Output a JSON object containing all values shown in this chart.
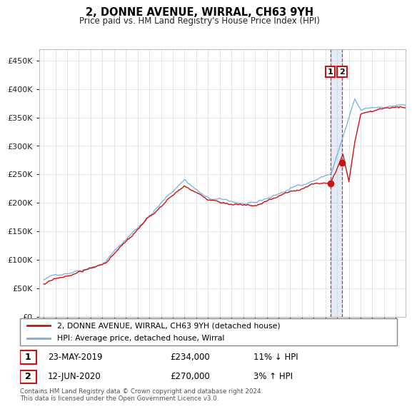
{
  "title": "2, DONNE AVENUE, WIRRAL, CH63 9YH",
  "subtitle": "Price paid vs. HM Land Registry's House Price Index (HPI)",
  "ylim": [
    0,
    470000
  ],
  "yticks": [
    0,
    50000,
    100000,
    150000,
    200000,
    250000,
    300000,
    350000,
    400000,
    450000
  ],
  "hpi_color": "#7aade0",
  "price_color": "#cc1111",
  "vline_color": "#cc1111",
  "transaction1": {
    "date_label": "23-MAY-2019",
    "price": 234000,
    "hpi_diff": "11% ↓ HPI",
    "year": 2019.384
  },
  "transaction2": {
    "date_label": "12-JUN-2020",
    "price": 270000,
    "hpi_diff": "3% ↑ HPI",
    "year": 2020.443
  },
  "legend_line1": "2, DONNE AVENUE, WIRRAL, CH63 9YH (detached house)",
  "legend_line2": "HPI: Average price, detached house, Wirral",
  "footnote": "Contains HM Land Registry data © Crown copyright and database right 2024.\nThis data is licensed under the Open Government Licence v3.0.",
  "background_color": "#ffffff",
  "grid_color": "#e0e0e0"
}
